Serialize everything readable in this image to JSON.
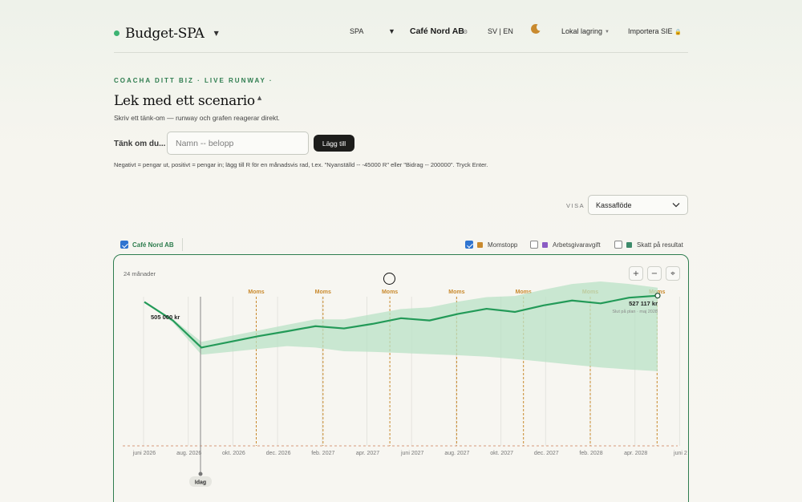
{
  "app": {
    "title": "Budget-SPA",
    "mode": "SPA",
    "company": "Café Nord AB",
    "language": "SV | EN",
    "storage": "Lokal lagring",
    "import": "Importera SIE"
  },
  "icons": {
    "brand_dot": "status-dot",
    "theme": "moon-icon",
    "company_settings": "gear-icon",
    "import": "lock-icon"
  },
  "colors": {
    "accent": "#2e7d4f",
    "line": "#239a58",
    "band": "#b9e2c6",
    "moms": "#c98a2e",
    "arbetsgivaravgift": "#8b5cc4",
    "skatt": "#3c8a6a",
    "checkbox": "#2f74d0"
  },
  "eyebrow": "COACHA DITT BIZ · LIVE RUNWAY ·",
  "heading": "Lek med ett scenario",
  "subtext": "Skriv ett tänk-om — runway och grafen reagerar direkt.",
  "scenario": {
    "label": "Tänk om du...",
    "placeholder": "Namn -- belopp",
    "value": "",
    "button": "Lägg till",
    "hint": "Negativt = pengar ut, positivt = pengar in; lägg till R för en månadsvis rad, t.ex. \"Nyanställd -- -45000 R\" eller \"Bidrag -- 200000\". Tryck Enter."
  },
  "view": {
    "label": "VISA",
    "selected": "Kassaflöde"
  },
  "legend": {
    "company": {
      "label": "Café Nord AB",
      "checked": true
    },
    "items": [
      {
        "label": "Momstopp",
        "checked": true,
        "color": "#c98a2e"
      },
      {
        "label": "Arbetsgivaravgift",
        "checked": false,
        "color": "#8b5cc4"
      },
      {
        "label": "Skatt på resultat",
        "checked": false,
        "color": "#3c8a6a"
      }
    ]
  },
  "chart_card": {
    "period_label": "24 månader",
    "zoom_in": "+",
    "zoom_out": "−",
    "reset": "⌖"
  },
  "chart_data": {
    "type": "area",
    "unit": "kr",
    "x_ticks": [
      "juni 2026",
      "aug. 2026",
      "okt. 2026",
      "dec. 2026",
      "feb. 2027",
      "apr. 2027",
      "juni 2027",
      "aug. 2027",
      "okt. 2027",
      "dec. 2027",
      "feb. 2028",
      "apr. 2028",
      "juni 2"
    ],
    "series": [
      {
        "values": [
          505000,
          440000,
          345000,
          365000,
          385000,
          402000,
          420000,
          412000,
          428000,
          448000,
          440000,
          463000,
          481000,
          470000,
          493000,
          510000,
          500000,
          520000,
          527117
        ],
        "band_upper": [
          505000,
          445000,
          365000,
          385000,
          405000,
          425000,
          444000,
          444000,
          462000,
          480000,
          486000,
          506000,
          522000,
          526000,
          548000,
          568000,
          577000,
          568000,
          555000
        ],
        "band_lower": [
          505000,
          433000,
          320000,
          330000,
          340000,
          350000,
          345000,
          332000,
          330000,
          326000,
          322000,
          318000,
          313000,
          305000,
          295000,
          285000,
          275000,
          268000,
          262000
        ]
      }
    ],
    "annotations": {
      "start_label": "505 000 kr",
      "end_label": "527 117 kr",
      "end_sublabel": "Slut på plan · maj 2028",
      "today_label": "Idag",
      "vat_label": "Moms",
      "vat_events": 7
    },
    "y_min": 0,
    "grid": true
  }
}
